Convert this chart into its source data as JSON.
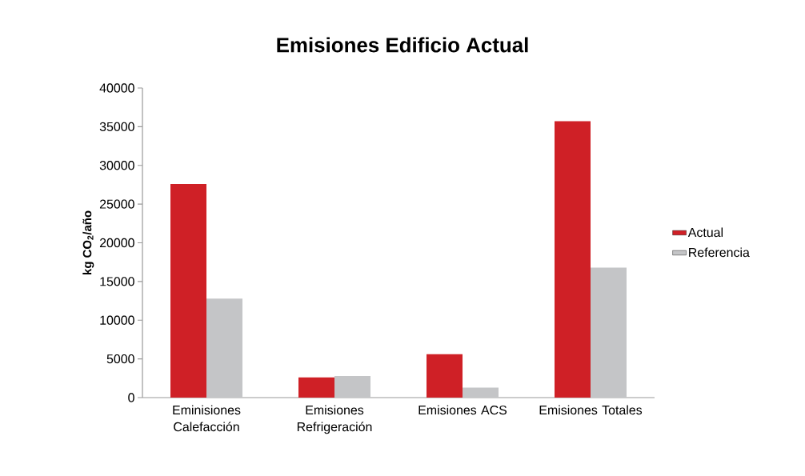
{
  "chart_data": {
    "type": "bar",
    "title": "Emisiones Edificio Actual",
    "ylabel": "kg CO$_{2}$/año",
    "categories": [
      "Eminisiones Calefacción",
      "Emisiones Refrigeración",
      "Emisiones ACS",
      "Emisiones Totales"
    ],
    "series": [
      {
        "name": "Actual",
        "color": "#cf2026",
        "values": [
          27600,
          2600,
          5600,
          35700
        ]
      },
      {
        "name": "Referencia",
        "color": "#c4c5c7",
        "values": [
          12800,
          2800,
          1300,
          16800
        ]
      }
    ],
    "ylim": [
      0,
      40000
    ],
    "yticks": [
      0,
      5000,
      10000,
      15000,
      20000,
      25000,
      30000,
      35000,
      40000
    ],
    "grid": false,
    "legend": "right"
  }
}
